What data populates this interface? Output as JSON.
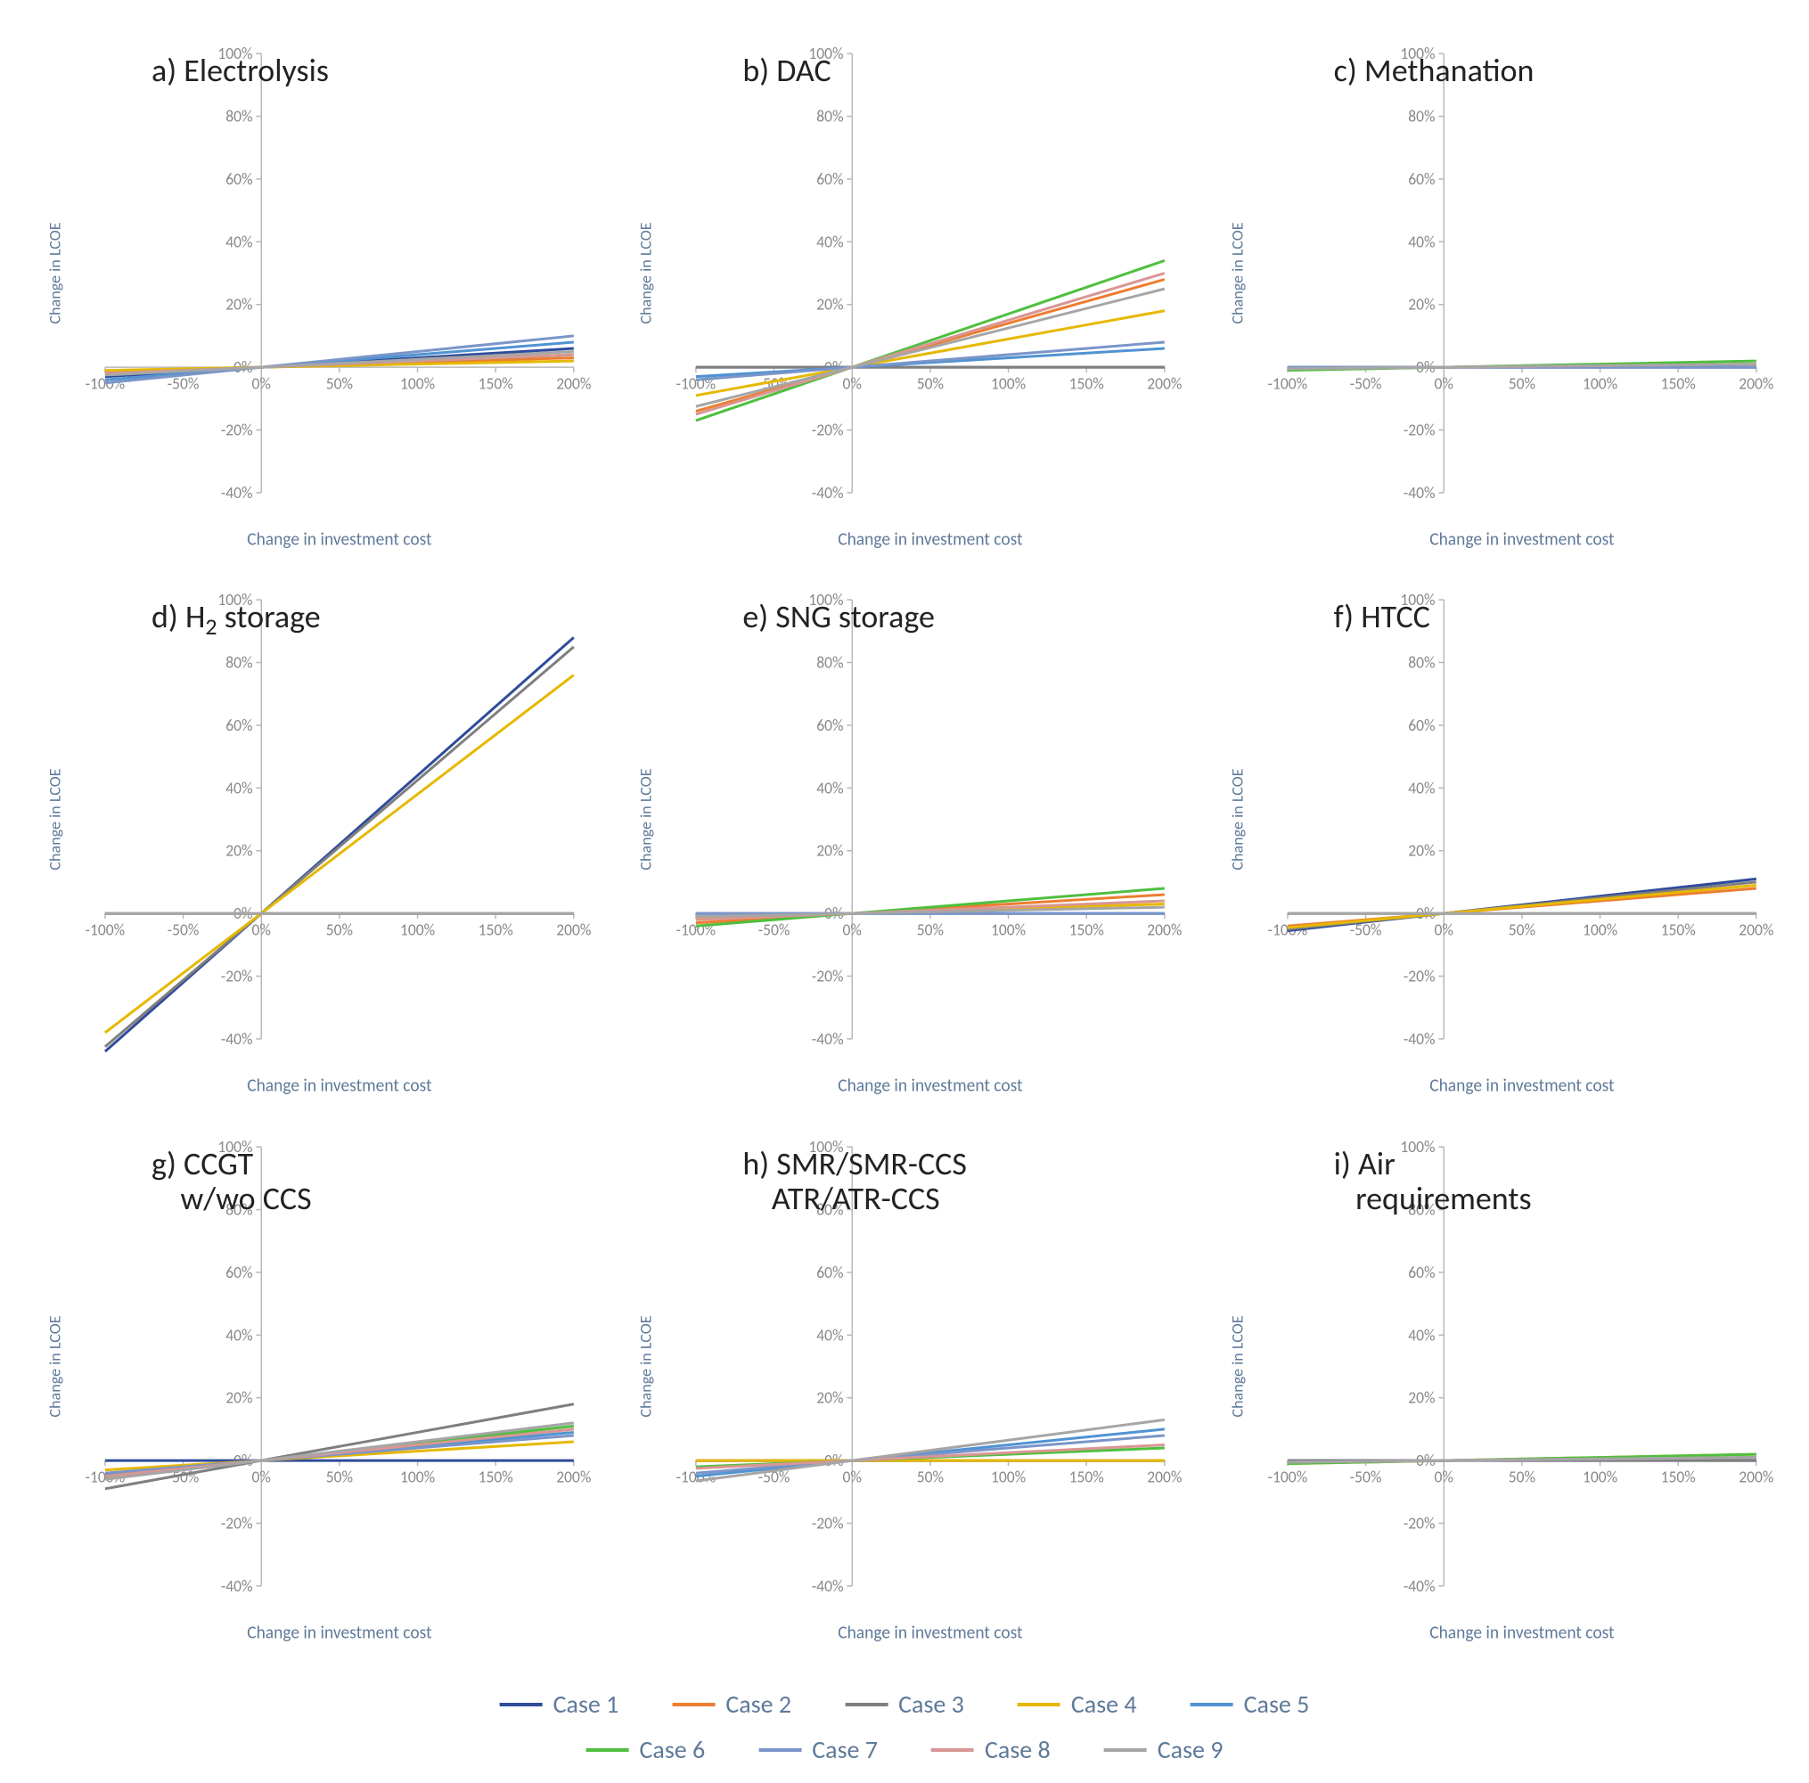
{
  "chart_global": {
    "type": "line-grid-sensitivity",
    "xlabel": "Change in investment cost",
    "ylabel": "Change in LCOE",
    "xlim": [
      -100,
      200
    ],
    "ylim": [
      -40,
      100
    ],
    "xticks": [
      -100,
      -50,
      0,
      50,
      100,
      150,
      200
    ],
    "yticks": [
      -40,
      -20,
      0,
      20,
      40,
      60,
      80,
      100
    ],
    "xtick_labels": [
      "-100%",
      "-50%",
      "0%",
      "50%",
      "100%",
      "150%",
      "200%"
    ],
    "ytick_labels": [
      "-40%",
      "-20%",
      "0%",
      "20%",
      "40%",
      "60%",
      "80%",
      "100%"
    ],
    "axis_color": "#b8b8b8",
    "background_color": "#ffffff",
    "title_fontsize": 36,
    "title_color": "#222222",
    "axis_label_color": "#5f7a99",
    "axis_label_fontsize": 20,
    "tick_label_color": "#888888",
    "tick_label_fontsize": 18,
    "line_width": 3
  },
  "series_colors": {
    "case1": "#2f4b9b",
    "case2": "#ed7d31",
    "case3": "#7f7f7f",
    "case4": "#e6b800",
    "case5": "#4f93d2",
    "case6": "#4fbf3f",
    "case7": "#7a95c9",
    "case8": "#d99694",
    "case9": "#a6a6a6"
  },
  "legend": {
    "rows": [
      [
        {
          "color_key": "case1",
          "label": "Case 1"
        },
        {
          "color_key": "case2",
          "label": "Case 2"
        },
        {
          "color_key": "case3",
          "label": "Case 3"
        },
        {
          "color_key": "case4",
          "label": "Case 4"
        },
        {
          "color_key": "case5",
          "label": "Case 5"
        }
      ],
      [
        {
          "color_key": "case6",
          "label": "Case 6"
        },
        {
          "color_key": "case7",
          "label": "Case 7"
        },
        {
          "color_key": "case8",
          "label": "Case 8"
        },
        {
          "color_key": "case9",
          "label": "Case 9"
        }
      ]
    ]
  },
  "panels": [
    {
      "key": "a",
      "title_html": "a) Electrolysis",
      "series": [
        {
          "color_key": "case1",
          "y_at_xmin": -3.0,
          "y_at_xmax": 6.0
        },
        {
          "color_key": "case2",
          "y_at_xmin": -1.5,
          "y_at_xmax": 3.0
        },
        {
          "color_key": "case3",
          "y_at_xmin": -2.0,
          "y_at_xmax": 4.0
        },
        {
          "color_key": "case4",
          "y_at_xmin": -1.0,
          "y_at_xmax": 2.0
        },
        {
          "color_key": "case5",
          "y_at_xmin": -4.0,
          "y_at_xmax": 8.0
        },
        {
          "color_key": "case6",
          "y_at_xmin": -2.0,
          "y_at_xmax": 4.0
        },
        {
          "color_key": "case7",
          "y_at_xmin": -5.0,
          "y_at_xmax": 10.0
        },
        {
          "color_key": "case8",
          "y_at_xmin": -2.0,
          "y_at_xmax": 4.0
        },
        {
          "color_key": "case9",
          "y_at_xmin": -2.5,
          "y_at_xmax": 5.0
        }
      ]
    },
    {
      "key": "b",
      "title_html": "b) DAC",
      "series": [
        {
          "color_key": "case1",
          "y_at_xmin": 0.0,
          "y_at_xmax": 0.0
        },
        {
          "color_key": "case2",
          "y_at_xmin": -14.0,
          "y_at_xmax": 28.0
        },
        {
          "color_key": "case3",
          "y_at_xmin": 0.0,
          "y_at_xmax": 0.0
        },
        {
          "color_key": "case4",
          "y_at_xmin": -9.0,
          "y_at_xmax": 18.0
        },
        {
          "color_key": "case5",
          "y_at_xmin": -3.0,
          "y_at_xmax": 6.0
        },
        {
          "color_key": "case6",
          "y_at_xmin": -17.0,
          "y_at_xmax": 34.0
        },
        {
          "color_key": "case7",
          "y_at_xmin": -4.0,
          "y_at_xmax": 8.0
        },
        {
          "color_key": "case8",
          "y_at_xmin": -15.0,
          "y_at_xmax": 30.0
        },
        {
          "color_key": "case9",
          "y_at_xmin": -12.5,
          "y_at_xmax": 25.0
        }
      ]
    },
    {
      "key": "c",
      "title_html": "c) Methanation",
      "series": [
        {
          "color_key": "case1",
          "y_at_xmin": 0.0,
          "y_at_xmax": 0.0
        },
        {
          "color_key": "case2",
          "y_at_xmin": -0.5,
          "y_at_xmax": 1.0
        },
        {
          "color_key": "case3",
          "y_at_xmin": 0.0,
          "y_at_xmax": 0.0
        },
        {
          "color_key": "case4",
          "y_at_xmin": -0.5,
          "y_at_xmax": 1.0
        },
        {
          "color_key": "case5",
          "y_at_xmin": 0.0,
          "y_at_xmax": 0.0
        },
        {
          "color_key": "case6",
          "y_at_xmin": -1.0,
          "y_at_xmax": 2.0
        },
        {
          "color_key": "case7",
          "y_at_xmin": 0.0,
          "y_at_xmax": 0.0
        },
        {
          "color_key": "case8",
          "y_at_xmin": -0.5,
          "y_at_xmax": 1.0
        },
        {
          "color_key": "case9",
          "y_at_xmin": -0.5,
          "y_at_xmax": 1.0
        }
      ]
    },
    {
      "key": "d",
      "title_html": "d) H<span class='sub'>2</span> storage",
      "series": [
        {
          "color_key": "case1",
          "y_at_xmin": -44.0,
          "y_at_xmax": 88.0
        },
        {
          "color_key": "case2",
          "y_at_xmin": 0.0,
          "y_at_xmax": 0.0
        },
        {
          "color_key": "case3",
          "y_at_xmin": -42.5,
          "y_at_xmax": 85.0
        },
        {
          "color_key": "case4",
          "y_at_xmin": -38.0,
          "y_at_xmax": 76.0
        },
        {
          "color_key": "case5",
          "y_at_xmin": 0.0,
          "y_at_xmax": 0.0
        },
        {
          "color_key": "case6",
          "y_at_xmin": 0.0,
          "y_at_xmax": 0.0
        },
        {
          "color_key": "case7",
          "y_at_xmin": 0.0,
          "y_at_xmax": 0.0
        },
        {
          "color_key": "case8",
          "y_at_xmin": 0.0,
          "y_at_xmax": 0.0
        },
        {
          "color_key": "case9",
          "y_at_xmin": 0.0,
          "y_at_xmax": 0.0
        }
      ]
    },
    {
      "key": "e",
      "title_html": "e) SNG storage",
      "series": [
        {
          "color_key": "case1",
          "y_at_xmin": 0.0,
          "y_at_xmax": 0.0
        },
        {
          "color_key": "case2",
          "y_at_xmin": -3.0,
          "y_at_xmax": 6.0
        },
        {
          "color_key": "case3",
          "y_at_xmin": 0.0,
          "y_at_xmax": 0.0
        },
        {
          "color_key": "case4",
          "y_at_xmin": -1.5,
          "y_at_xmax": 3.0
        },
        {
          "color_key": "case5",
          "y_at_xmin": 0.0,
          "y_at_xmax": 0.0
        },
        {
          "color_key": "case6",
          "y_at_xmin": -4.0,
          "y_at_xmax": 8.0
        },
        {
          "color_key": "case7",
          "y_at_xmin": 0.0,
          "y_at_xmax": 0.0
        },
        {
          "color_key": "case8",
          "y_at_xmin": -2.0,
          "y_at_xmax": 4.0
        },
        {
          "color_key": "case9",
          "y_at_xmin": -1.0,
          "y_at_xmax": 2.0
        }
      ]
    },
    {
      "key": "f",
      "title_html": "f) HTCC",
      "series": [
        {
          "color_key": "case1",
          "y_at_xmin": -5.5,
          "y_at_xmax": 11.0
        },
        {
          "color_key": "case2",
          "y_at_xmin": -4.0,
          "y_at_xmax": 8.0
        },
        {
          "color_key": "case3",
          "y_at_xmin": -5.0,
          "y_at_xmax": 10.0
        },
        {
          "color_key": "case4",
          "y_at_xmin": -4.5,
          "y_at_xmax": 9.0
        },
        {
          "color_key": "case5",
          "y_at_xmin": 0.0,
          "y_at_xmax": 0.0
        },
        {
          "color_key": "case6",
          "y_at_xmin": 0.0,
          "y_at_xmax": 0.0
        },
        {
          "color_key": "case7",
          "y_at_xmin": 0.0,
          "y_at_xmax": 0.0
        },
        {
          "color_key": "case8",
          "y_at_xmin": 0.0,
          "y_at_xmax": 0.0
        },
        {
          "color_key": "case9",
          "y_at_xmin": 0.0,
          "y_at_xmax": 0.0
        }
      ]
    },
    {
      "key": "g",
      "title_html": "g) CCGT<br>&nbsp;&nbsp;&nbsp;&nbsp;w/wo CCS",
      "series": [
        {
          "color_key": "case1",
          "y_at_xmin": 0.0,
          "y_at_xmax": 0.0
        },
        {
          "color_key": "case2",
          "y_at_xmin": -5.0,
          "y_at_xmax": 10.0
        },
        {
          "color_key": "case3",
          "y_at_xmin": -9.0,
          "y_at_xmax": 18.0
        },
        {
          "color_key": "case4",
          "y_at_xmin": -3.0,
          "y_at_xmax": 6.0
        },
        {
          "color_key": "case5",
          "y_at_xmin": -4.5,
          "y_at_xmax": 9.0
        },
        {
          "color_key": "case6",
          "y_at_xmin": -5.5,
          "y_at_xmax": 11.0
        },
        {
          "color_key": "case7",
          "y_at_xmin": -4.0,
          "y_at_xmax": 8.0
        },
        {
          "color_key": "case8",
          "y_at_xmin": -5.0,
          "y_at_xmax": 10.0
        },
        {
          "color_key": "case9",
          "y_at_xmin": -6.0,
          "y_at_xmax": 12.0
        }
      ]
    },
    {
      "key": "h",
      "title_html": "h) SMR/SMR-CCS<br>&nbsp;&nbsp;&nbsp;&nbsp;ATR/ATR-CCS",
      "series": [
        {
          "color_key": "case1",
          "y_at_xmin": 0.0,
          "y_at_xmax": 0.0
        },
        {
          "color_key": "case2",
          "y_at_xmin": 0.0,
          "y_at_xmax": 0.0
        },
        {
          "color_key": "case3",
          "y_at_xmin": 0.0,
          "y_at_xmax": 0.0
        },
        {
          "color_key": "case4",
          "y_at_xmin": 0.0,
          "y_at_xmax": 0.0
        },
        {
          "color_key": "case5",
          "y_at_xmin": -5.0,
          "y_at_xmax": 10.0
        },
        {
          "color_key": "case6",
          "y_at_xmin": -2.0,
          "y_at_xmax": 4.0
        },
        {
          "color_key": "case7",
          "y_at_xmin": -4.0,
          "y_at_xmax": 8.0
        },
        {
          "color_key": "case8",
          "y_at_xmin": -2.5,
          "y_at_xmax": 5.0
        },
        {
          "color_key": "case9",
          "y_at_xmin": -6.5,
          "y_at_xmax": 13.0
        }
      ]
    },
    {
      "key": "i",
      "title_html": "i) Air<br>&nbsp;&nbsp;&nbsp;requirements",
      "series": [
        {
          "color_key": "case1",
          "y_at_xmin": 0.0,
          "y_at_xmax": 0.0
        },
        {
          "color_key": "case2",
          "y_at_xmin": -0.5,
          "y_at_xmax": 1.0
        },
        {
          "color_key": "case3",
          "y_at_xmin": 0.0,
          "y_at_xmax": 0.0
        },
        {
          "color_key": "case4",
          "y_at_xmin": -1.0,
          "y_at_xmax": 2.0
        },
        {
          "color_key": "case5",
          "y_at_xmin": -0.5,
          "y_at_xmax": 1.0
        },
        {
          "color_key": "case6",
          "y_at_xmin": -1.0,
          "y_at_xmax": 2.0
        },
        {
          "color_key": "case7",
          "y_at_xmin": -0.5,
          "y_at_xmax": 1.0
        },
        {
          "color_key": "case8",
          "y_at_xmin": -0.5,
          "y_at_xmax": 1.0
        },
        {
          "color_key": "case9",
          "y_at_xmin": -0.5,
          "y_at_xmax": 1.0
        }
      ]
    }
  ]
}
